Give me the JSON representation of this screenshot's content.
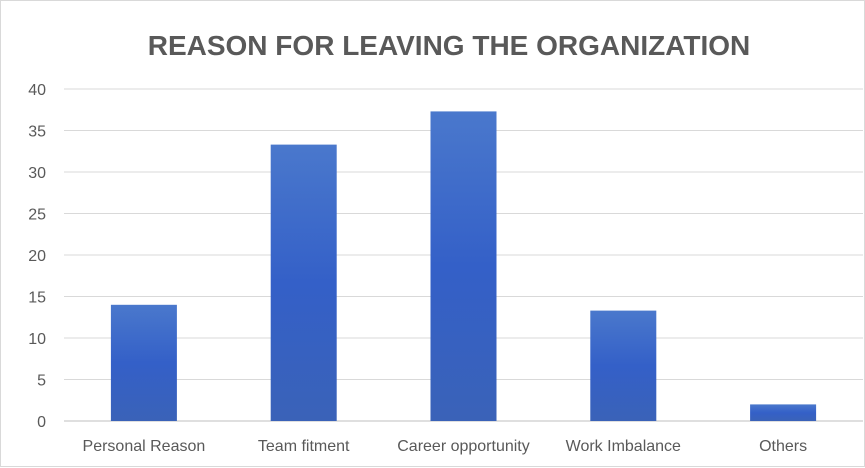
{
  "chart_data": {
    "type": "bar",
    "title": "REASON FOR LEAVING THE ORGANIZATION",
    "xlabel": "",
    "ylabel": "",
    "categories": [
      "Personal Reason",
      "Team fitment",
      "Career opportunity",
      "Work Imbalance",
      "Others"
    ],
    "values": [
      14,
      33.3,
      37.3,
      13.3,
      2
    ],
    "ylim": [
      0,
      40
    ],
    "yticks": [
      "0",
      "5",
      "10",
      "15",
      "20",
      "25",
      "30",
      "35",
      "40"
    ],
    "grid": true,
    "legend": "none",
    "colors": {
      "bar_top": "#4a78cc",
      "bar_mid": "#3460c8",
      "bar_bottom": "#3a62b8",
      "grid": "#d9d9d9",
      "text": "#595959"
    }
  }
}
